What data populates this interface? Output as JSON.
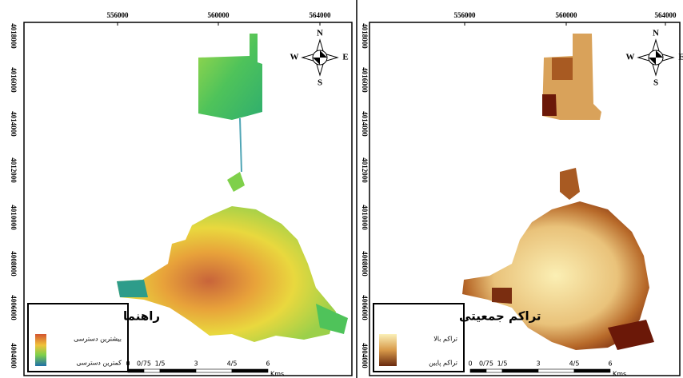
{
  "panels": [
    {
      "legend": {
        "title": "راهنما",
        "labels": [
          "بیشترین دسترسی",
          "کمترین دسترسی"
        ]
      },
      "x_ticks": [
        "556000",
        "560000",
        "564000"
      ],
      "y_ticks": [
        "4018000",
        "4016000",
        "4014000",
        "4012000",
        "4010000",
        "4008000",
        "4006000",
        "4004000"
      ],
      "scale_bar": [
        "0",
        "0/75",
        "1/5",
        "3",
        "4/5",
        "6"
      ],
      "scale_unit": "Kms",
      "compass": {
        "n": "N",
        "s": "S",
        "w": "W",
        "e": "E"
      }
    },
    {
      "legend": {
        "title": "تراکم جمعیتی",
        "labels": [
          "تراکم بالا",
          "تراکم پایین"
        ]
      },
      "x_ticks": [
        "556000",
        "560000",
        "564000"
      ],
      "y_ticks": [
        "4018000",
        "4016000",
        "4014000",
        "4012000",
        "4010000",
        "4008000",
        "4006000",
        "4004000"
      ],
      "scale_bar": [
        "0",
        "0/75",
        "1/5",
        "3",
        "4/5",
        "6"
      ],
      "scale_unit": "Kms",
      "compass": {
        "n": "N",
        "s": "S",
        "w": "W",
        "e": "E"
      }
    }
  ]
}
